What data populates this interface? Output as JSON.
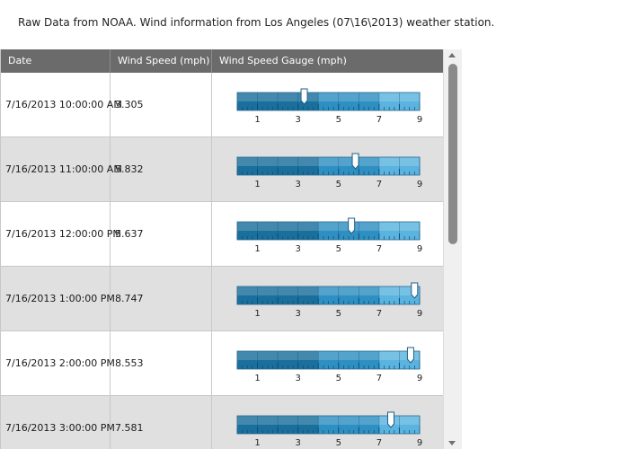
{
  "caption": "Raw Data from NOAA. Wind information from Los Angeles (07\\16\\2013) weather station.",
  "columns": [
    "Date",
    "Wind Speed (mph)",
    "Wind Speed Gauge (mph)"
  ],
  "gauge_scale": {
    "min": 0,
    "max": 9,
    "labels": [
      "1",
      "3",
      "5",
      "7",
      "9"
    ],
    "colors": {
      "dark": "#1a6f9c",
      "mid": "#2e8fc2",
      "light": "#5ab4df",
      "tick": "#0e4d70"
    }
  },
  "rows": [
    {
      "date": "7/16/2013 10:00:00 AM",
      "speed": "3.305",
      "value": 3.305
    },
    {
      "date": "7/16/2013 11:00:00 AM",
      "speed": "5.832",
      "value": 5.832
    },
    {
      "date": "7/16/2013 12:00:00 PM",
      "speed": "5.637",
      "value": 5.637
    },
    {
      "date": "7/16/2013 1:00:00 PM",
      "speed": "8.747",
      "value": 8.747
    },
    {
      "date": "7/16/2013 2:00:00 PM",
      "speed": "8.553",
      "value": 8.553
    },
    {
      "date": "7/16/2013 3:00:00 PM",
      "speed": "7.581",
      "value": 7.581
    }
  ]
}
